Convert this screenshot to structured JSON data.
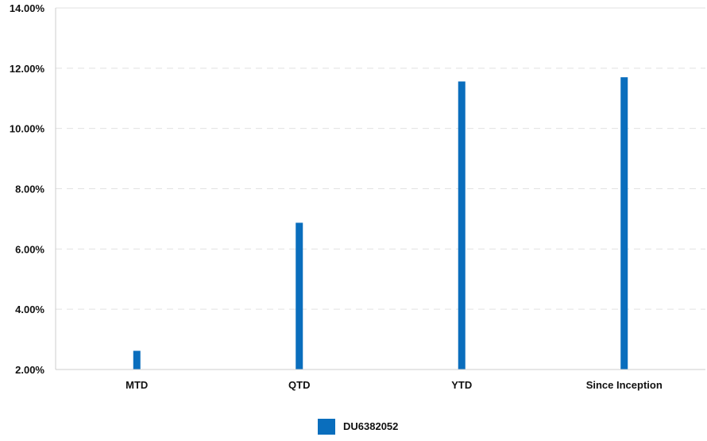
{
  "chart_data": {
    "type": "bar",
    "categories": [
      "MTD",
      "QTD",
      "YTD",
      "Since Inception"
    ],
    "series": [
      {
        "name": "DU6382052",
        "values": [
          2.62,
          6.87,
          11.56,
          11.7
        ],
        "color": "#0a6ebd"
      }
    ],
    "yticks": [
      "2.00%",
      "4.00%",
      "6.00%",
      "8.00%",
      "10.00%",
      "12.00%",
      "14.00%"
    ],
    "ylim": [
      2,
      14
    ],
    "grid": true,
    "legend": "bottom-center",
    "title": "",
    "xlabel": "",
    "ylabel": ""
  },
  "colors": {
    "bar": "#0a6ebd",
    "grid": "#e2e2e2",
    "axis": "#cccccc"
  }
}
